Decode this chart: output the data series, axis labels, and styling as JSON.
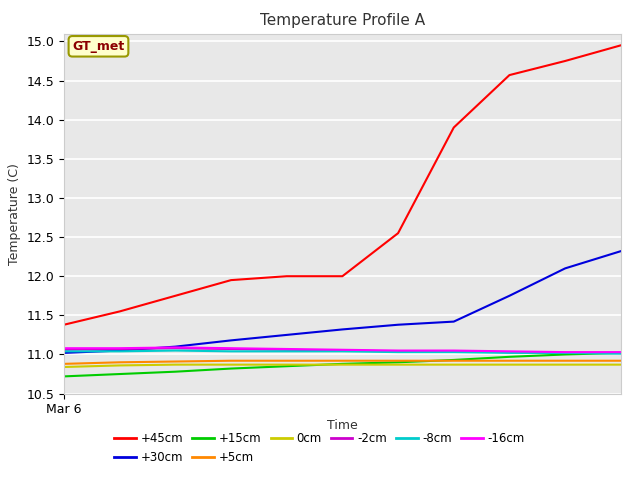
{
  "title": "Temperature Profile A",
  "xlabel": "Time",
  "ylabel": "Temperature (C)",
  "ylim": [
    10.5,
    15.1
  ],
  "xlim": [
    0,
    10
  ],
  "background_color": "#e8e8e8",
  "figure_color": "#ffffff",
  "annotation_text": "GT_met",
  "annotation_color": "#8B0000",
  "annotation_bg": "#ffffcc",
  "annotation_edge": "#999900",
  "series": {
    "+45cm": {
      "color": "#ff0000",
      "x": [
        0,
        1,
        2,
        3,
        4,
        5,
        6,
        7,
        8,
        9,
        10
      ],
      "y": [
        11.38,
        11.55,
        11.75,
        11.95,
        12.0,
        12.0,
        12.55,
        13.9,
        14.57,
        14.75,
        14.95
      ]
    },
    "+30cm": {
      "color": "#0000dd",
      "x": [
        0,
        1,
        2,
        3,
        4,
        5,
        6,
        7,
        8,
        9,
        10
      ],
      "y": [
        11.02,
        11.05,
        11.1,
        11.18,
        11.25,
        11.32,
        11.38,
        11.42,
        11.75,
        12.1,
        12.32
      ]
    },
    "+15cm": {
      "color": "#00cc00",
      "x": [
        0,
        1,
        2,
        3,
        4,
        5,
        6,
        7,
        8,
        9,
        10
      ],
      "y": [
        10.72,
        10.75,
        10.78,
        10.82,
        10.85,
        10.88,
        10.9,
        10.93,
        10.97,
        11.0,
        11.02
      ]
    },
    "+5cm": {
      "color": "#ff8800",
      "x": [
        0,
        1,
        2,
        3,
        4,
        5,
        6,
        7,
        8,
        9,
        10
      ],
      "y": [
        10.88,
        10.9,
        10.91,
        10.92,
        10.92,
        10.92,
        10.92,
        10.92,
        10.92,
        10.92,
        10.92
      ]
    },
    "0cm": {
      "color": "#cccc00",
      "x": [
        0,
        1,
        2,
        3,
        4,
        5,
        6,
        7,
        8,
        9,
        10
      ],
      "y": [
        10.84,
        10.86,
        10.87,
        10.87,
        10.87,
        10.87,
        10.87,
        10.87,
        10.87,
        10.87,
        10.87
      ]
    },
    "-2cm": {
      "color": "#cc00cc",
      "x": [
        0,
        1,
        2,
        3,
        4,
        5,
        6,
        7,
        8,
        9,
        10
      ],
      "y": [
        11.06,
        11.07,
        11.08,
        11.07,
        11.06,
        11.05,
        11.04,
        11.04,
        11.03,
        11.02,
        11.02
      ]
    },
    "-8cm": {
      "color": "#00cccc",
      "x": [
        0,
        1,
        2,
        3,
        4,
        5,
        6,
        7,
        8,
        9,
        10
      ],
      "y": [
        11.04,
        11.04,
        11.05,
        11.04,
        11.04,
        11.04,
        11.03,
        11.03,
        11.02,
        11.02,
        11.01
      ]
    },
    "-16cm": {
      "color": "#ff00ff",
      "x": [
        0,
        1,
        2,
        3,
        4,
        5,
        6,
        7,
        8,
        9,
        10
      ],
      "y": [
        11.08,
        11.08,
        11.09,
        11.08,
        11.07,
        11.06,
        11.05,
        11.05,
        11.04,
        11.03,
        11.03
      ]
    }
  },
  "xtick_label": "Mar 6",
  "yticks": [
    10.5,
    11.0,
    11.5,
    12.0,
    12.5,
    13.0,
    13.5,
    14.0,
    14.5,
    15.0
  ],
  "legend_row1": [
    "+45cm",
    "+30cm",
    "+15cm",
    "+5cm",
    "0cm",
    "-2cm"
  ],
  "legend_row2": [
    "-8cm",
    "-16cm"
  ]
}
